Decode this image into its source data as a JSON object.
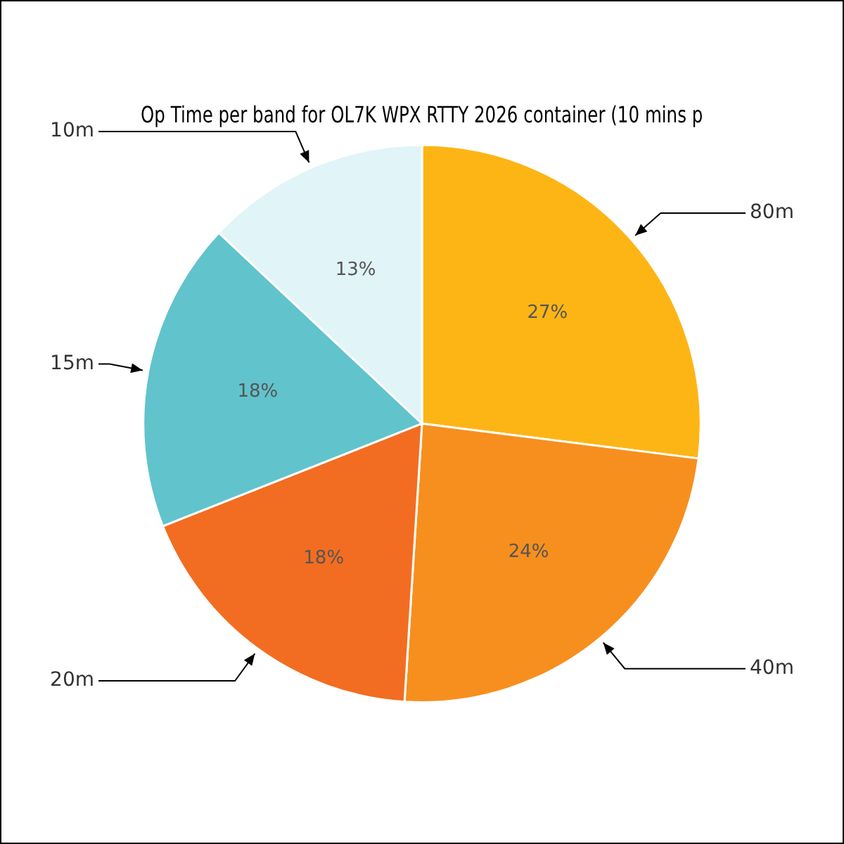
{
  "chart_data": {
    "type": "pie",
    "title": "Op Time per band for OL7K WPX RTTY 2026 container (10 mins p",
    "categories": [
      "80m",
      "40m",
      "20m",
      "15m",
      "10m"
    ],
    "values": [
      27,
      24,
      18,
      18,
      13
    ],
    "value_labels": [
      "27%",
      "24%",
      "18%",
      "18%",
      "13%"
    ],
    "colors": [
      "#fdb515",
      "#f78f1e",
      "#f26d21",
      "#61c3cc",
      "#e1f4f7"
    ],
    "legend": false
  }
}
